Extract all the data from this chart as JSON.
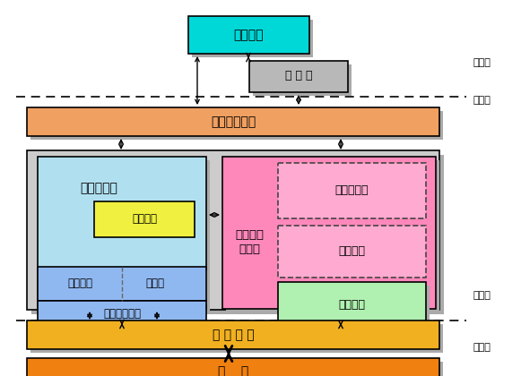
{
  "white_bg": "#ffffff",
  "colors": {
    "cyan_box": "#00d8d8",
    "gray_lib": "#b8b8b8",
    "orange_syscall": "#f0a060",
    "kernel_bg": "#cccccc",
    "light_blue_fs": "#b0e0f0",
    "yellow_cache": "#f0f040",
    "blue_dev": "#90b8f0",
    "pink_proc": "#ff88bb",
    "pink_dashed_fill": "#ffaad0",
    "light_green_mem": "#b0f0b0",
    "orange_hwctrl": "#f0b020",
    "orange_hw": "#f08010",
    "shadow": "#aaaaaa",
    "dashed_edge": "#444444"
  },
  "labels": {
    "user_program": "用户程序",
    "lib": "函 数 库",
    "syscall": "系统调用接口",
    "file_sys": "文件子系统",
    "cache": "高速缓冲",
    "char_dev": "字符设备",
    "block_dev": "块设备",
    "dev_driver": "设备驱动程序",
    "proc_ctrl_1": "进程控制",
    "proc_ctrl_2": "子系统",
    "ipc": "进程间通信",
    "scheduler": "调度程序",
    "mem_mgmt": "内存管理",
    "hw_ctrl": "硬 件 控 制",
    "hw": "硬    件",
    "user_level": "用户级",
    "kernel_level1": "内核级",
    "kernel_level2": "内核级",
    "hw_level": "硬件级"
  },
  "layout": {
    "figw": 5.81,
    "figh": 4.2,
    "dpi": 100
  }
}
